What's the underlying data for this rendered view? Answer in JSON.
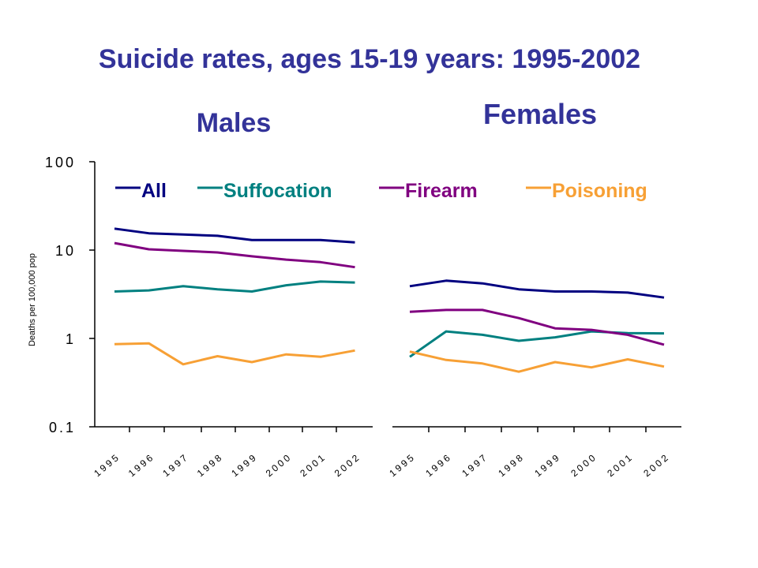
{
  "title": "Suicide rates, ages 15-19 years: 1995-2002",
  "chart_data": {
    "type": "line",
    "ylabel": "Deaths per 100,000 pop",
    "yscale": "log",
    "ylim": [
      0.1,
      100
    ],
    "yticks": [
      "100",
      "10",
      "1",
      "0.1"
    ],
    "legend": {
      "placement": "top"
    },
    "series_meta": [
      {
        "key": "all",
        "name": "All",
        "color": "#000080"
      },
      {
        "key": "suffocation",
        "name": "Suffocation",
        "color": "#008080"
      },
      {
        "key": "firearm",
        "name": "Firearm",
        "color": "#800080"
      },
      {
        "key": "poisoning",
        "name": "Poisoning",
        "color": "#F7A035"
      }
    ],
    "panels": [
      {
        "title": "Males",
        "x": [
          "1995",
          "1996",
          "1997",
          "1998",
          "1999",
          "2000",
          "2001",
          "2002"
        ],
        "series": [
          {
            "key": "all",
            "values": [
              17.5,
              15.5,
              15.0,
              14.5,
              13.0,
              13.0,
              13.0,
              12.2
            ]
          },
          {
            "key": "suffocation",
            "values": [
              3.4,
              3.5,
              3.9,
              3.6,
              3.4,
              4.0,
              4.4,
              4.3
            ]
          },
          {
            "key": "firearm",
            "values": [
              12.0,
              10.2,
              9.8,
              9.4,
              8.5,
              7.8,
              7.3,
              6.4
            ]
          },
          {
            "key": "poisoning",
            "values": [
              0.86,
              0.88,
              0.51,
              0.63,
              0.54,
              0.66,
              0.62,
              0.73
            ]
          }
        ]
      },
      {
        "title": "Females",
        "x": [
          "1995",
          "1996",
          "1997",
          "1998",
          "1999",
          "2000",
          "2001",
          "2002"
        ],
        "series": [
          {
            "key": "all",
            "values": [
              3.9,
              4.5,
              4.2,
              3.6,
              3.4,
              3.4,
              3.3,
              2.9
            ]
          },
          {
            "key": "suffocation",
            "values": [
              0.62,
              1.2,
              1.1,
              0.94,
              1.03,
              1.2,
              1.15,
              1.14
            ]
          },
          {
            "key": "firearm",
            "values": [
              2.0,
              2.1,
              2.1,
              1.7,
              1.3,
              1.25,
              1.1,
              0.85
            ]
          },
          {
            "key": "poisoning",
            "values": [
              0.71,
              0.57,
              0.52,
              0.42,
              0.54,
              0.47,
              0.58,
              0.48
            ]
          }
        ]
      }
    ]
  }
}
